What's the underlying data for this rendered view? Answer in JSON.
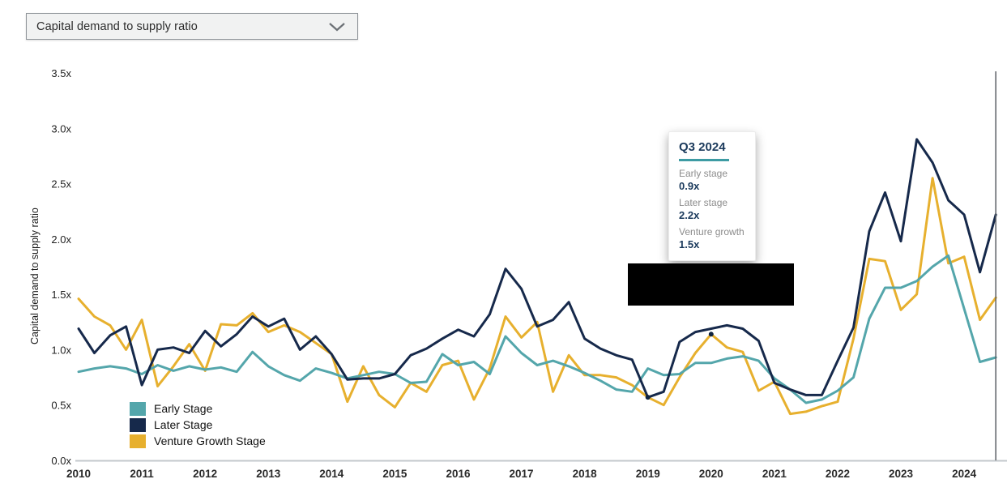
{
  "dropdown": {
    "label": "Capital demand to supply ratio"
  },
  "tooltip": {
    "title": "Q3 2024",
    "rows": [
      {
        "label": "Early stage",
        "value": "0.9x"
      },
      {
        "label": "Later stage",
        "value": "2.2x"
      },
      {
        "label": "Venture growth",
        "value": "1.5x"
      }
    ]
  },
  "chart_data": {
    "type": "line",
    "title": "",
    "xlabel": "",
    "ylabel": "Capital demand to supply ratio",
    "ylim": [
      0,
      3.5
    ],
    "ytick_step": 0.5,
    "ytick_labels": [
      "0.0x",
      "0.5x",
      "1.0x",
      "1.5x",
      "2.0x",
      "2.5x",
      "3.0x",
      "3.5x"
    ],
    "x_tick_years": [
      "2010",
      "2011",
      "2012",
      "2013",
      "2014",
      "2015",
      "2016",
      "2017",
      "2018",
      "2019",
      "2020",
      "2021",
      "2022",
      "2023",
      "2024"
    ],
    "x_frequency": "quarterly",
    "x_start": "2010Q1",
    "x_end": "2024Q3",
    "grid": false,
    "legend_position": "bottom-left",
    "series": [
      {
        "name": "Early Stage",
        "color": "#54A6AB",
        "values": [
          0.8,
          0.83,
          0.85,
          0.83,
          0.78,
          0.86,
          0.81,
          0.85,
          0.82,
          0.84,
          0.8,
          0.98,
          0.85,
          0.77,
          0.72,
          0.83,
          0.79,
          0.74,
          0.77,
          0.8,
          0.78,
          0.7,
          0.71,
          0.96,
          0.86,
          0.89,
          0.78,
          1.12,
          0.97,
          0.86,
          0.9,
          0.85,
          0.79,
          0.72,
          0.64,
          0.62,
          0.83,
          0.77,
          0.78,
          0.88,
          0.88,
          0.92,
          0.94,
          0.9,
          0.74,
          0.64,
          0.52,
          0.55,
          0.63,
          0.75,
          1.28,
          1.56,
          1.56,
          1.62,
          1.75,
          1.85,
          1.37,
          0.89,
          0.93
        ]
      },
      {
        "name": "Later Stage",
        "color": "#16294B",
        "values": [
          1.19,
          0.97,
          1.13,
          1.21,
          0.68,
          1.0,
          1.02,
          0.97,
          1.17,
          1.03,
          1.14,
          1.3,
          1.21,
          1.28,
          1.0,
          1.12,
          0.96,
          0.73,
          0.74,
          0.74,
          0.78,
          0.95,
          1.01,
          1.1,
          1.18,
          1.12,
          1.32,
          1.73,
          1.55,
          1.21,
          1.27,
          1.43,
          1.1,
          1.01,
          0.95,
          0.91,
          0.57,
          0.62,
          1.07,
          1.16,
          1.19,
          1.22,
          1.19,
          1.08,
          0.7,
          0.64,
          0.59,
          0.59,
          0.9,
          1.2,
          2.07,
          2.42,
          1.98,
          2.9,
          2.69,
          2.35,
          2.22,
          1.7,
          2.22
        ]
      },
      {
        "name": "Venture Growth Stage",
        "color": "#E7B02E",
        "values": [
          1.46,
          1.3,
          1.22,
          1.0,
          1.27,
          0.67,
          0.85,
          1.05,
          0.81,
          1.23,
          1.22,
          1.33,
          1.16,
          1.22,
          1.16,
          1.06,
          0.96,
          0.53,
          0.85,
          0.59,
          0.48,
          0.7,
          0.62,
          0.86,
          0.9,
          0.55,
          0.83,
          1.3,
          1.11,
          1.25,
          0.62,
          0.95,
          0.77,
          0.77,
          0.75,
          0.68,
          0.57,
          0.5,
          0.75,
          0.97,
          1.14,
          1.02,
          0.98,
          0.63,
          0.71,
          0.42,
          0.44,
          0.49,
          0.53,
          1.1,
          1.82,
          1.8,
          1.36,
          1.5,
          2.55,
          1.78,
          1.84,
          1.27,
          1.47
        ]
      }
    ],
    "markers": [
      {
        "series": "Later Stage",
        "index": 36,
        "value": 0.57
      },
      {
        "series": "Venture Growth Stage",
        "index": 40,
        "value": 1.14
      }
    ],
    "cursor": {
      "label": "Q3 2024",
      "index": 58
    }
  }
}
